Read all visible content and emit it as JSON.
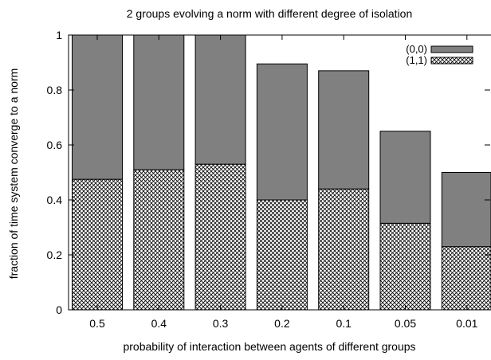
{
  "chart_data": {
    "type": "bar",
    "stacked": true,
    "title": "2 groups evolving a norm with different degree of isolation",
    "xlabel": "probability of interaction between agents of different groups",
    "ylabel": "fraction of time system converge to a norm",
    "ylim": [
      0,
      1
    ],
    "yticks": [
      "0",
      "0.2",
      "0.4",
      "0.6",
      "0.8",
      "1"
    ],
    "categories": [
      "0.5",
      "0.4",
      "0.3",
      "0.2",
      "0.1",
      "0.05",
      "0.01"
    ],
    "series": [
      {
        "name": "(1,1)",
        "pattern": "crosshatch",
        "values": [
          0.475,
          0.51,
          0.53,
          0.4,
          0.44,
          0.315,
          0.23
        ]
      },
      {
        "name": "(0,0)",
        "pattern": "solid",
        "color": "#808080",
        "values": [
          0.525,
          0.49,
          0.47,
          0.495,
          0.43,
          0.335,
          0.27
        ]
      }
    ],
    "legend_position": "top-right",
    "grid": false
  }
}
